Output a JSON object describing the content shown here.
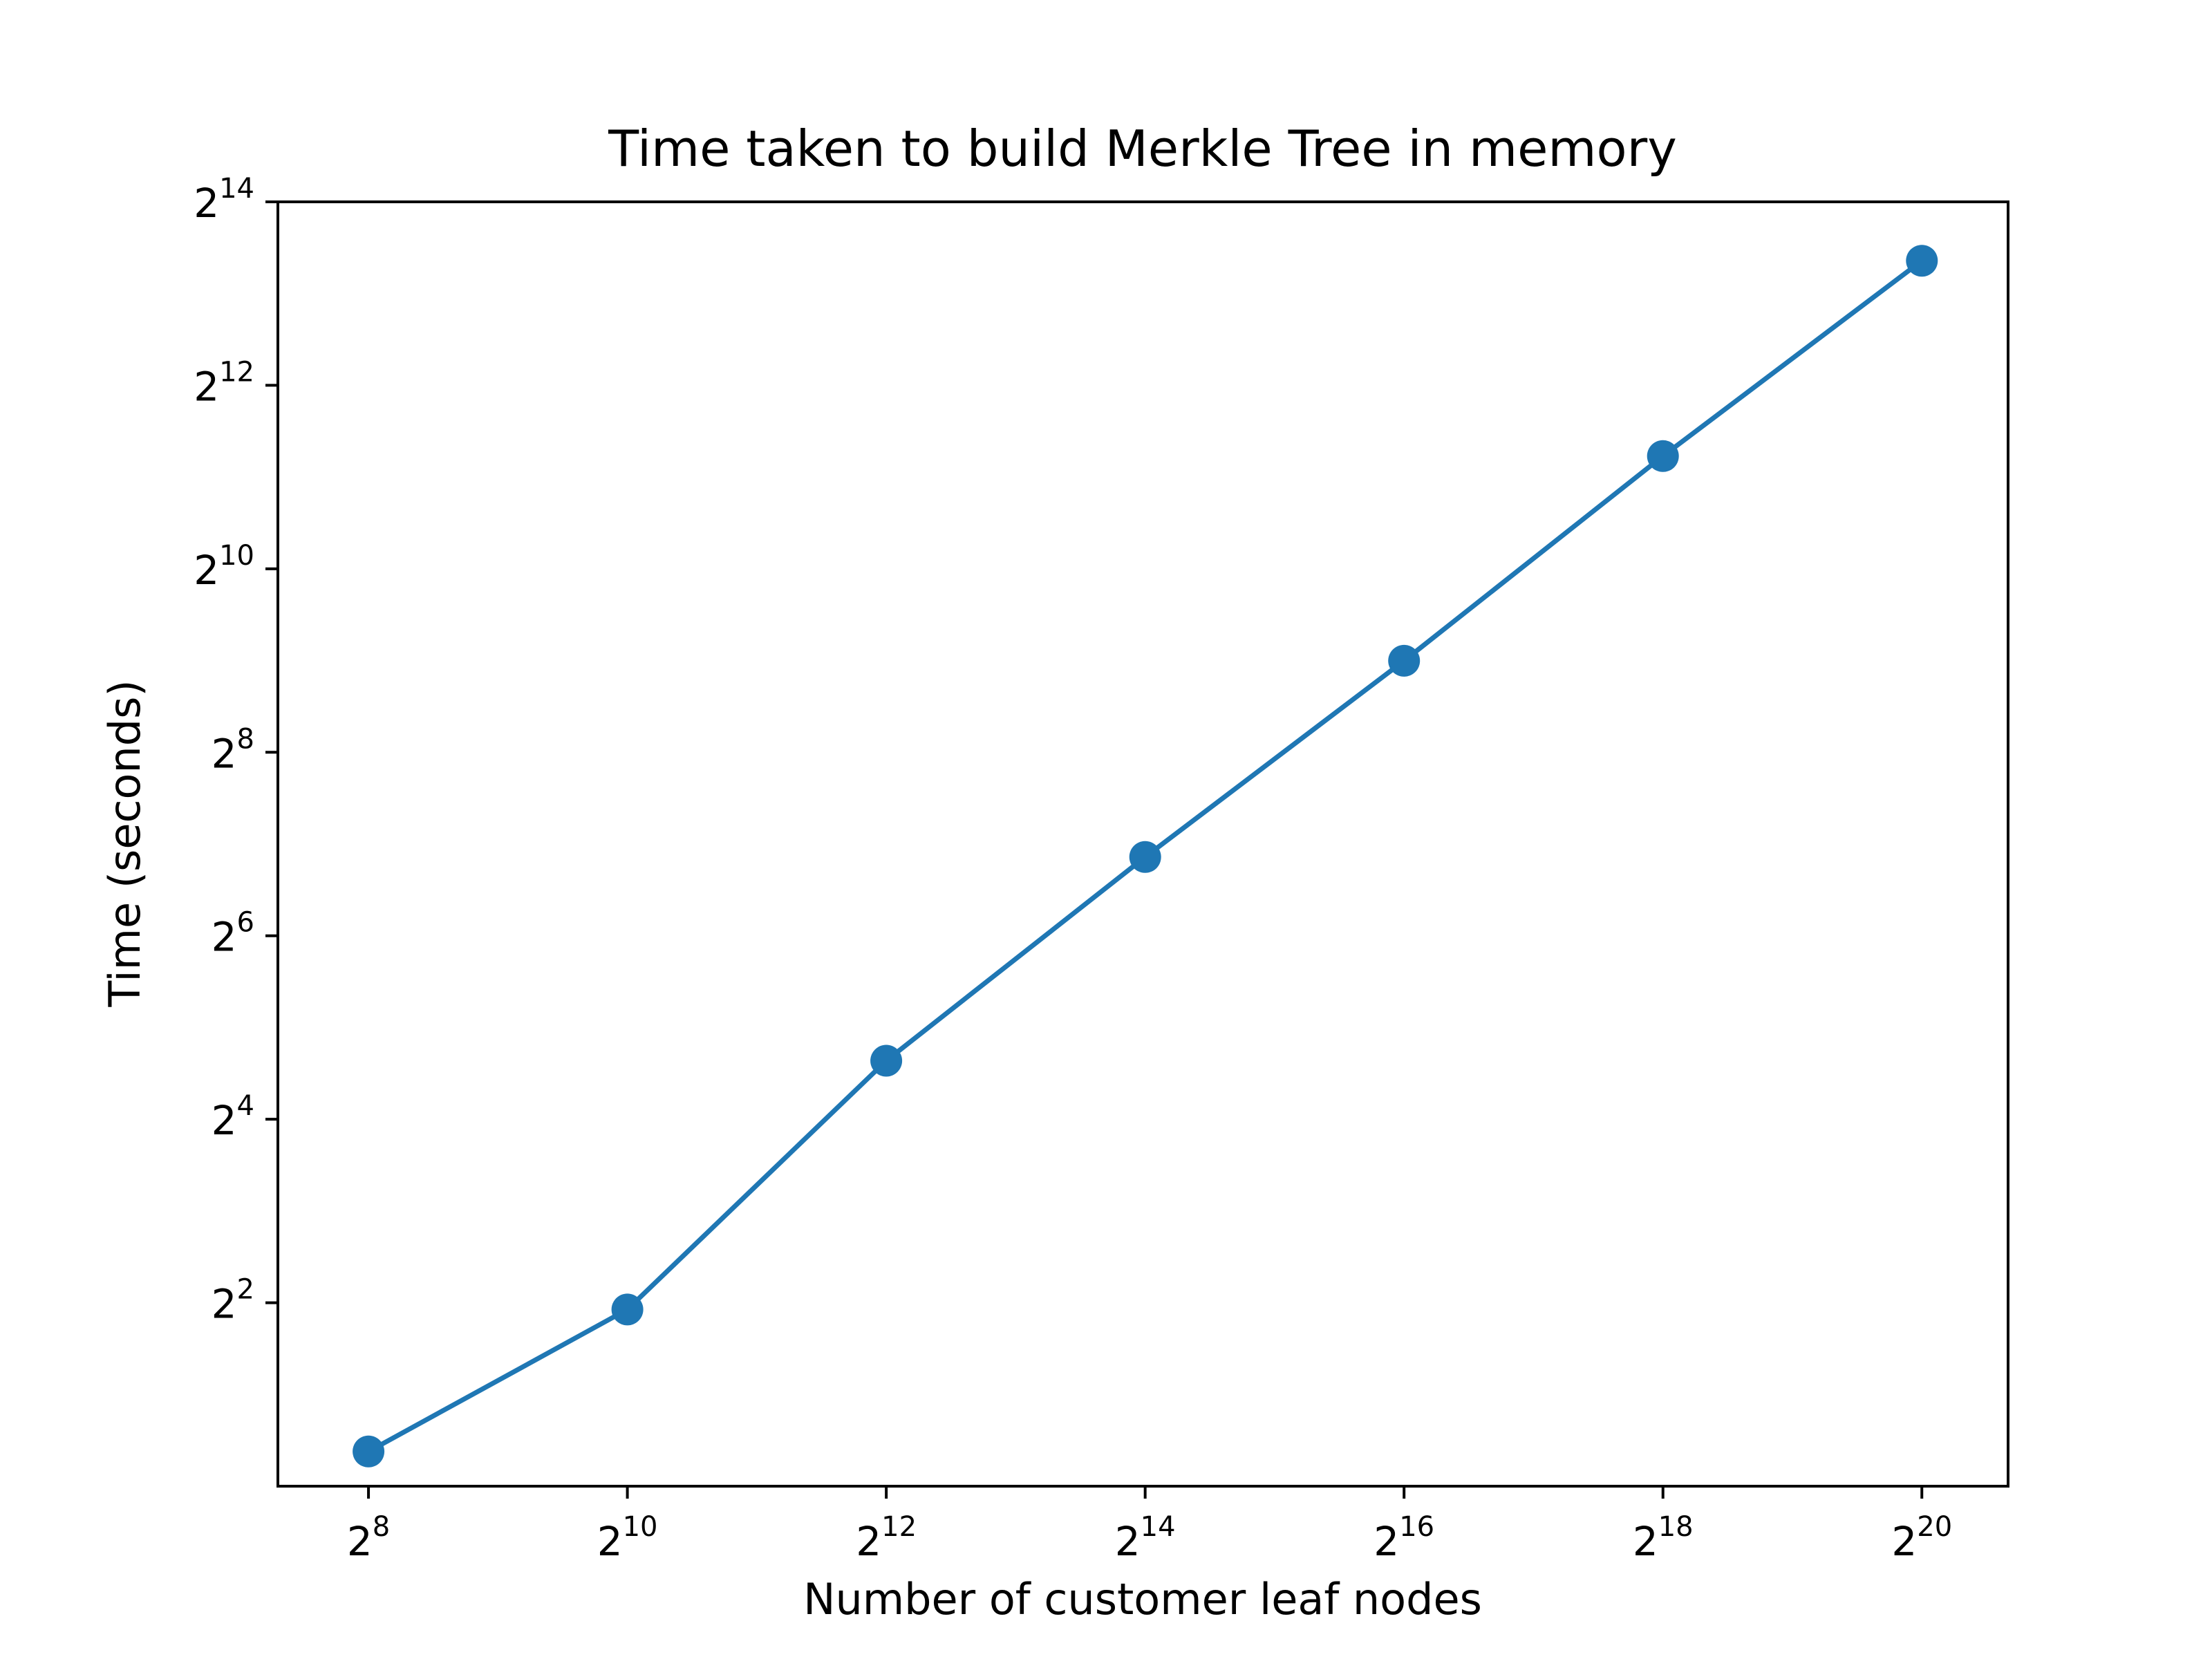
{
  "chart_data": {
    "type": "line",
    "title": "Time taken to build Merkle Tree in memory",
    "xlabel": "Number of customer leaf nodes",
    "ylabel": "Time (seconds)",
    "x_scale": "log2",
    "y_scale": "log2",
    "xlim": [
      157.6,
      1663894
    ],
    "ylim": [
      1.0,
      16384
    ],
    "x_ticks": [
      {
        "base": "2",
        "exp": "8",
        "value": 256
      },
      {
        "base": "2",
        "exp": "10",
        "value": 1024
      },
      {
        "base": "2",
        "exp": "12",
        "value": 4096
      },
      {
        "base": "2",
        "exp": "14",
        "value": 16384
      },
      {
        "base": "2",
        "exp": "16",
        "value": 65536
      },
      {
        "base": "2",
        "exp": "18",
        "value": 262144
      },
      {
        "base": "2",
        "exp": "20",
        "value": 1048576
      }
    ],
    "y_ticks": [
      {
        "base": "2",
        "exp": "2",
        "value": 4
      },
      {
        "base": "2",
        "exp": "4",
        "value": 16
      },
      {
        "base": "2",
        "exp": "6",
        "value": 64
      },
      {
        "base": "2",
        "exp": "8",
        "value": 256
      },
      {
        "base": "2",
        "exp": "10",
        "value": 1024
      },
      {
        "base": "2",
        "exp": "12",
        "value": 4096
      },
      {
        "base": "2",
        "exp": "14",
        "value": 16384
      }
    ],
    "grid": false,
    "legend": "none",
    "series": [
      {
        "color": "#1f77b4",
        "marker": "circle",
        "x": [
          256,
          1024,
          4096,
          16384,
          65536,
          262144,
          1048576
        ],
        "y": [
          1.3,
          3.8,
          24.9,
          116,
          511,
          2400,
          10500
        ]
      }
    ]
  }
}
